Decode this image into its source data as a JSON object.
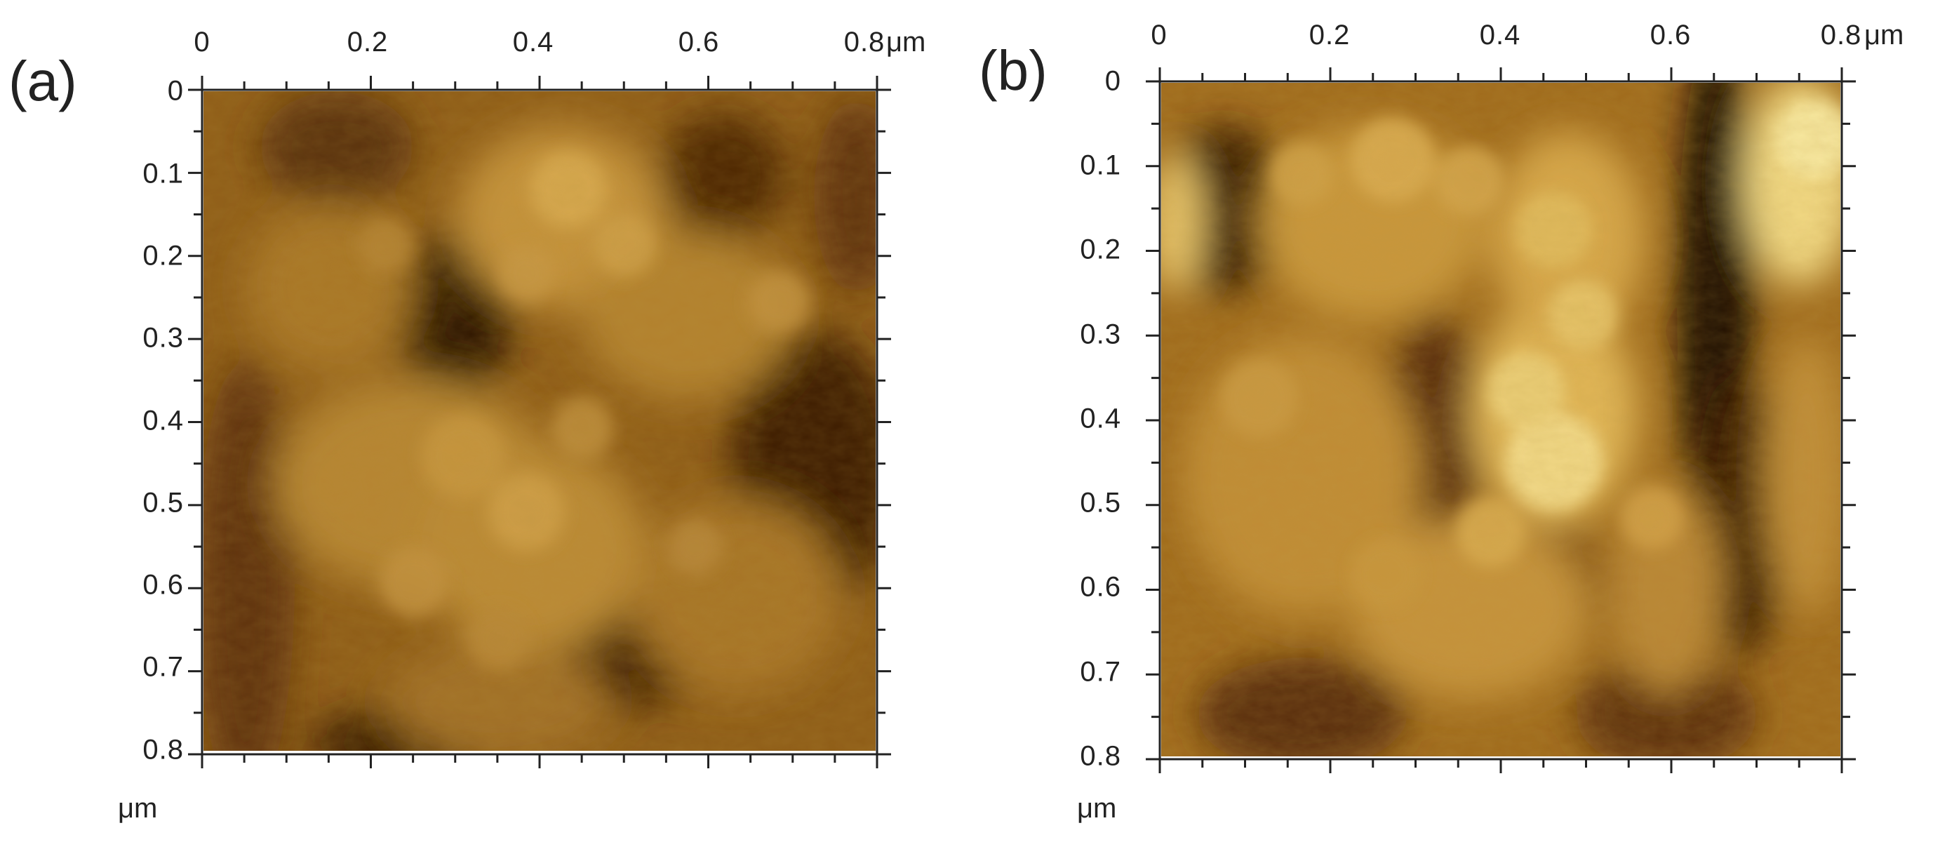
{
  "panels": [
    {
      "id": "a",
      "label": "(a)",
      "x_ticks": [
        "0",
        "0.2",
        "0.4",
        "0.6",
        "0.8"
      ],
      "x_unit": "μm",
      "y_ticks": [
        "0",
        "0.1",
        "0.2",
        "0.3",
        "0.4",
        "0.5",
        "0.6",
        "0.7",
        "0.8"
      ],
      "y_unit": "μm",
      "colormap": [
        "#3a1a04",
        "#6e3d0c",
        "#9c6419",
        "#bf8a2a",
        "#dcb24a",
        "#f4e08a"
      ]
    },
    {
      "id": "b",
      "label": "(b)",
      "x_ticks": [
        "0",
        "0.2",
        "0.4",
        "0.6",
        "0.8"
      ],
      "x_unit": "μm",
      "y_ticks": [
        "0",
        "0.1",
        "0.2",
        "0.3",
        "0.4",
        "0.5",
        "0.6",
        "0.7",
        "0.8"
      ],
      "y_unit": "μm",
      "colormap": [
        "#2a1102",
        "#6b3a0b",
        "#a06a1c",
        "#c89634",
        "#e4c259",
        "#fbf0a0"
      ]
    }
  ]
}
